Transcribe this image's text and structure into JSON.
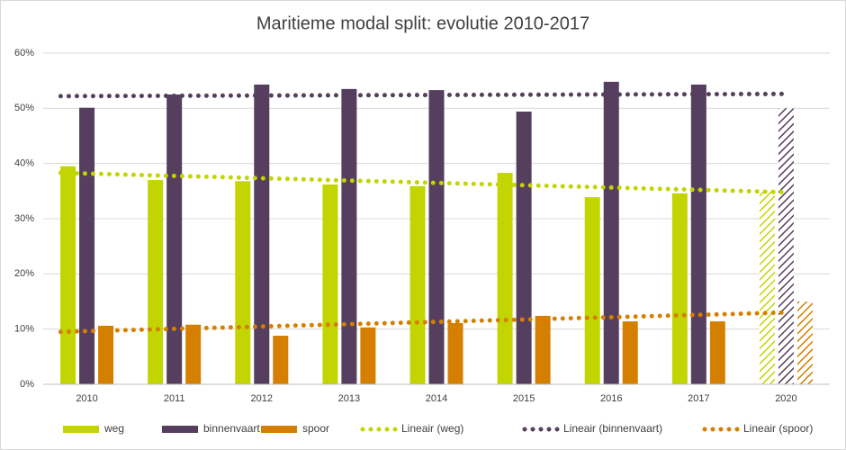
{
  "chart_data": {
    "type": "bar",
    "title": "Maritieme modal split: evolutie 2010-2017",
    "categories": [
      "2010",
      "2011",
      "2012",
      "2013",
      "2014",
      "2015",
      "2016",
      "2017",
      "2020"
    ],
    "series": [
      {
        "name": "weg",
        "color": "#c2d500",
        "values": [
          39.5,
          37.0,
          36.8,
          36.2,
          35.9,
          38.3,
          33.9,
          34.6,
          35.0
        ]
      },
      {
        "name": "binnenvaart",
        "color": "#553e5e",
        "values": [
          50.1,
          52.5,
          54.3,
          53.5,
          53.3,
          49.4,
          54.8,
          54.3,
          50.0
        ]
      },
      {
        "name": "spoor",
        "color": "#d57f00",
        "values": [
          10.6,
          10.8,
          8.8,
          10.3,
          11.1,
          12.4,
          11.4,
          11.4,
          15.0
        ]
      }
    ],
    "trendlines": [
      {
        "name": "Lineair (weg)",
        "color": "#c2d500",
        "values": [
          38.3,
          34.8
        ]
      },
      {
        "name": "Lineair (binnenvaart)",
        "color": "#553e5e",
        "values": [
          52.2,
          52.6
        ]
      },
      {
        "name": "Lineair (spoor)",
        "color": "#d57f00",
        "values": [
          9.5,
          13.0
        ]
      }
    ],
    "hatched_last": true,
    "ylim": [
      0,
      60
    ],
    "yticks": [
      {
        "value": 0,
        "label": "0%"
      },
      {
        "value": 10,
        "label": "10%"
      },
      {
        "value": 20,
        "label": "20%"
      },
      {
        "value": 30,
        "label": "30%"
      },
      {
        "value": 40,
        "label": "40%"
      },
      {
        "value": 50,
        "label": "50%"
      },
      {
        "value": 60,
        "label": "60%"
      }
    ],
    "grid": true,
    "legend": "bottom"
  }
}
